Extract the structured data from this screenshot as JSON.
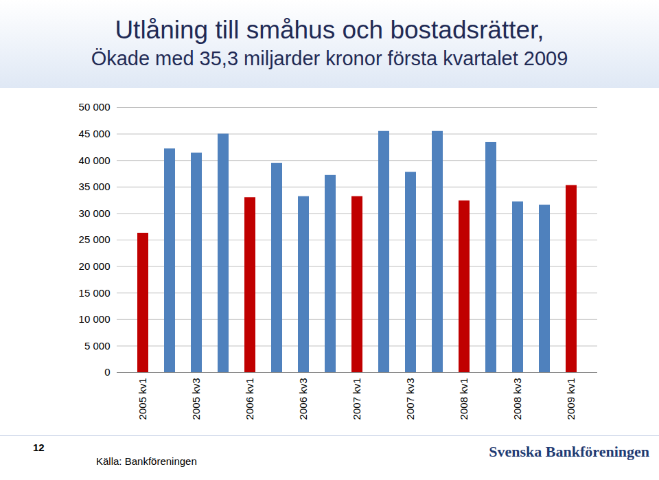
{
  "chart_data": {
    "type": "bar",
    "title": "Utlåning till småhus och bostadsrätter,",
    "subtitle": "Ökade med 35,3 miljarder kronor första kvartalet 2009",
    "categories": [
      "2005 kv1",
      null,
      "2005 kv3",
      null,
      "2006 kv1",
      null,
      "2006 kv3",
      null,
      "2007 kv1",
      null,
      "2007 kv3",
      null,
      "2008 kv1",
      null,
      "2008 kv3",
      null,
      "2009 kv1"
    ],
    "values": [
      26300,
      42200,
      41400,
      45000,
      33000,
      39500,
      33200,
      37200,
      33200,
      45500,
      37800,
      45500,
      32400,
      43400,
      32200,
      31600,
      35300
    ],
    "colors": [
      "#c00000",
      "#4f81bd",
      "#4f81bd",
      "#4f81bd",
      "#c00000",
      "#4f81bd",
      "#4f81bd",
      "#4f81bd",
      "#c00000",
      "#4f81bd",
      "#4f81bd",
      "#4f81bd",
      "#c00000",
      "#4f81bd",
      "#4f81bd",
      "#4f81bd",
      "#c00000"
    ],
    "ylim": [
      0,
      50000
    ],
    "yticks": [
      0,
      {
        "value": 5000,
        "label": "5 000"
      },
      {
        "value": 10000,
        "label": "10 000"
      },
      {
        "value": 15000,
        "label": "15 000"
      },
      {
        "value": 20000,
        "label": "20 000"
      },
      {
        "value": 25000,
        "label": "25 000"
      },
      {
        "value": 30000,
        "label": "30 000"
      },
      {
        "value": 35000,
        "label": "35 000"
      },
      {
        "value": 40000,
        "label": "40 000"
      },
      {
        "value": 45000,
        "label": "45 000"
      },
      {
        "value": 50000,
        "label": "50 000"
      }
    ],
    "grid": true,
    "page_number": "12",
    "source": "Källa: Bankföreningen",
    "logo": "Svenska Bankföreningen"
  }
}
